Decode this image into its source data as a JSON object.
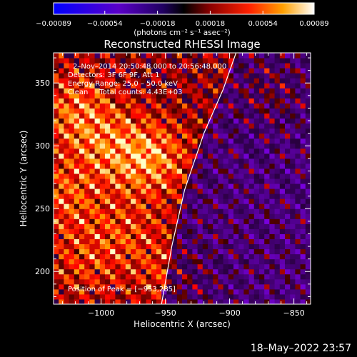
{
  "chart_data": {
    "type": "heatmap",
    "title": "Reconstructed RHESSI Image",
    "xlabel": "Heliocentric X (arcsec)",
    "ylabel": "Heliocentric Y (arcsec)",
    "xlim": [
      -1037,
      -837
    ],
    "ylim": [
      174,
      374
    ],
    "x_ticks": [
      -1000,
      -950,
      -900,
      -850
    ],
    "x_tick_labels": [
      "−1000",
      "−950",
      "−900",
      "−850"
    ],
    "y_ticks": [
      200,
      250,
      300,
      350
    ],
    "y_tick_labels": [
      "200",
      "250",
      "300",
      "350"
    ],
    "colorbar": {
      "range": [
        -0.00089,
        0.00089
      ],
      "ticks": [
        -0.00089,
        -0.00054,
        -0.00018,
        0.00018,
        0.00054,
        0.00089
      ],
      "tick_labels": [
        "−0.00089",
        "−0.00054",
        "−0.00018",
        "0.00018",
        "0.00054",
        "0.00089"
      ],
      "unit_label": "(photons cm⁻² s⁻¹ asec⁻²)"
    },
    "annotations": [
      "2–Nov–2014 20:50:48.000 to 20:56:48.000",
      "Detectors: 3F 6F 9F, Att 1",
      "Energy Range: 25.0 – 50.0 keV",
      "Clean     Total counts: 4.43E+03"
    ],
    "peak_label": "Position of Peak = [−953,285]",
    "peak": [
      -953,
      285
    ],
    "limb_curve": [
      [
        -953,
        174
      ],
      [
        -945,
        220
      ],
      [
        -935,
        265
      ],
      [
        -920,
        310
      ],
      [
        -905,
        345
      ],
      [
        -895,
        374
      ]
    ],
    "brightness_model": {
      "bright_regions": [
        [
          -960,
          290,
          1.0
        ],
        [
          -1030,
          260,
          0.7
        ],
        [
          -1020,
          330,
          0.8
        ],
        [
          -995,
          300,
          0.6
        ],
        [
          -980,
          230,
          0.55
        ],
        [
          -940,
          195,
          0.6
        ],
        [
          -870,
          345,
          0.65
        ],
        [
          -1015,
          205,
          0.5
        ]
      ],
      "limb_side": "east bright, west dim"
    }
  },
  "footer_timestamp": "18–May–2022 23:57"
}
